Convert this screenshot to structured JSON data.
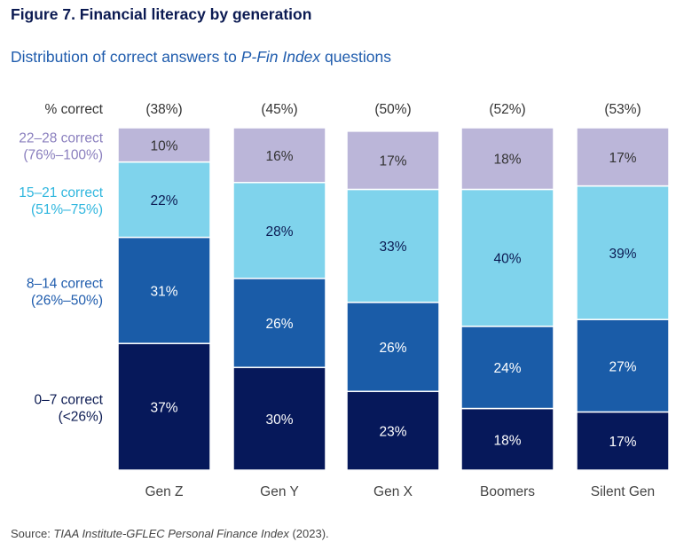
{
  "title": "Figure 7. Financial literacy by generation",
  "subtitle": {
    "prefix": "Distribution of correct answers to ",
    "italic": "P-Fin Index",
    "suffix": " questions"
  },
  "source": {
    "prefix": "Source: ",
    "italic": "TIAA Institute-GFLEC Personal Finance Index",
    "suffix": " (2023)."
  },
  "colors": {
    "title": "#0b1a52",
    "subtitle": "#1f5cad"
  },
  "chart_data": {
    "type": "bar",
    "stacked": true,
    "title": "Financial literacy by generation",
    "subtitle": "Distribution of correct answers to P-Fin Index questions",
    "xlabel": "",
    "ylabel": "",
    "ylim": [
      0,
      100
    ],
    "grid": false,
    "header_label": "% correct",
    "categories": [
      "Gen Z",
      "Gen Y",
      "Gen X",
      "Boomers",
      "Silent Gen"
    ],
    "category_overall": [
      "(38%)",
      "(45%)",
      "(50%)",
      "(52%)",
      "(53%)"
    ],
    "series": [
      {
        "name": "0–7 correct (<26%)",
        "line1": "0–7 correct",
        "line2": "(<26%)",
        "color": "#06185a",
        "label_color": "#0b1a52",
        "text_color": "#ffffff",
        "values": [
          37,
          30,
          23,
          18,
          17
        ]
      },
      {
        "name": "8–14 correct (26%–50%)",
        "line1": "8–14 correct",
        "line2": "(26%–50%)",
        "color": "#1a5ca8",
        "label_color": "#1f5cad",
        "text_color": "#ffffff",
        "values": [
          31,
          26,
          26,
          24,
          27
        ]
      },
      {
        "name": "15–21 correct (51%–75%)",
        "line1": "15–21 correct",
        "line2": "(51%–75%)",
        "color": "#7fd3ec",
        "label_color": "#2fb6de",
        "text_color": "#0b1a52",
        "values": [
          22,
          28,
          33,
          40,
          39
        ]
      },
      {
        "name": "22–28 correct (76%–100%)",
        "line1": "22–28 correct",
        "line2": "(76%–100%)",
        "color": "#bbb6d9",
        "label_color": "#8a7fbe",
        "text_color": "#333333",
        "values": [
          10,
          16,
          17,
          18,
          17
        ]
      }
    ],
    "legend_placement": "left"
  }
}
